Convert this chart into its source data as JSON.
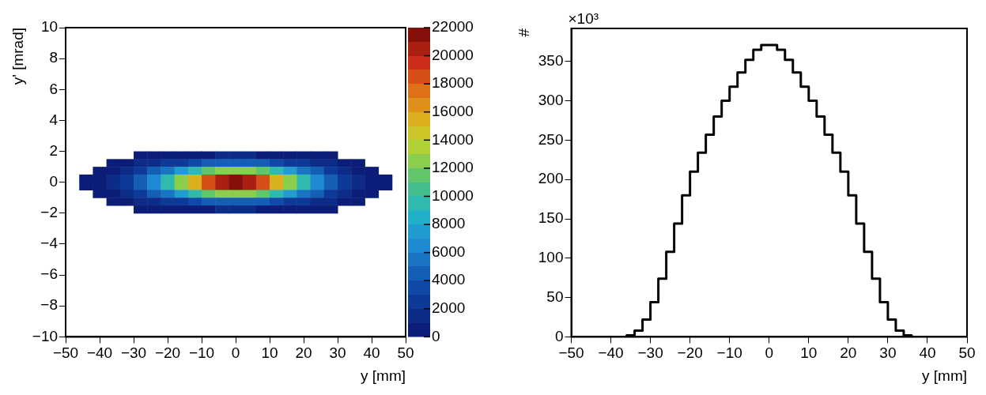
{
  "chart_data": [
    {
      "type": "heatmap",
      "xlabel": "y [mm]",
      "ylabel": "y' [mrad]",
      "x": [
        -44,
        -40,
        -36,
        -32,
        -28,
        -24,
        -20,
        -16,
        -12,
        -8,
        -4,
        0,
        4,
        8,
        12,
        16,
        20,
        24,
        28,
        32,
        36,
        40,
        44
      ],
      "y": [
        1.75,
        1.25,
        0.75,
        0.25,
        -0.25,
        -0.75,
        -1.25,
        -1.75
      ],
      "cells": [
        [
          null,
          null,
          null,
          null,
          200,
          300,
          400,
          600,
          700,
          900,
          1000,
          1000,
          1000,
          900,
          700,
          600,
          400,
          300,
          200,
          null,
          null,
          null,
          null
        ],
        [
          null,
          null,
          300,
          600,
          1000,
          1400,
          2100,
          2700,
          3400,
          4000,
          4400,
          4600,
          4400,
          4000,
          3400,
          2700,
          2100,
          1400,
          1000,
          600,
          300,
          null,
          null
        ],
        [
          null,
          500,
          900,
          1600,
          2600,
          4000,
          5700,
          7600,
          9500,
          11100,
          12300,
          12700,
          12300,
          11100,
          9500,
          7600,
          5700,
          4000,
          2600,
          1600,
          900,
          500,
          null
        ],
        [
          400,
          900,
          1600,
          2700,
          4400,
          6600,
          9500,
          12600,
          15800,
          18600,
          20400,
          21100,
          20400,
          18600,
          15800,
          12600,
          9500,
          6600,
          4400,
          2700,
          1600,
          900,
          400
        ],
        [
          400,
          900,
          1600,
          2700,
          4400,
          6600,
          9500,
          12600,
          15800,
          18600,
          20400,
          21100,
          20400,
          18600,
          15800,
          12600,
          9500,
          6600,
          4400,
          2700,
          1600,
          900,
          400
        ],
        [
          null,
          500,
          900,
          1600,
          2600,
          4000,
          5700,
          7600,
          9500,
          11100,
          12300,
          12700,
          12300,
          11100,
          9500,
          7600,
          5700,
          4000,
          2600,
          1600,
          900,
          500,
          null
        ],
        [
          null,
          null,
          300,
          600,
          1000,
          1400,
          2100,
          2700,
          3400,
          4000,
          4400,
          4600,
          4400,
          4000,
          3400,
          2700,
          2100,
          1400,
          1000,
          600,
          300,
          null,
          null
        ],
        [
          null,
          null,
          null,
          null,
          200,
          300,
          400,
          600,
          700,
          900,
          1000,
          1000,
          1000,
          900,
          700,
          600,
          400,
          300,
          200,
          null,
          null,
          null,
          null
        ]
      ],
      "clim": [
        0,
        22000
      ],
      "cticks": [
        0,
        2000,
        4000,
        6000,
        8000,
        10000,
        12000,
        14000,
        16000,
        18000,
        20000,
        22000
      ],
      "xlim": [
        -50,
        50
      ],
      "xticks": [
        -50,
        -40,
        -30,
        -20,
        -10,
        0,
        10,
        20,
        30,
        40,
        50
      ],
      "ylim": [
        -10,
        10
      ],
      "yticks": [
        -10,
        -8,
        -6,
        -4,
        -2,
        0,
        2,
        4,
        6,
        8,
        10
      ],
      "grid": false
    },
    {
      "type": "histogram",
      "xlabel": "y [mm]",
      "ylabel": "#",
      "annotations": [
        "×10³"
      ],
      "color": "#000000",
      "bins": [
        -50,
        -48,
        -46,
        -44,
        -42,
        -40,
        -38,
        -36,
        -34,
        -32,
        -30,
        -28,
        -26,
        -24,
        -22,
        -20,
        -18,
        -16,
        -14,
        -12,
        -10,
        -8,
        -6,
        -4,
        -2,
        0,
        2,
        4,
        6,
        8,
        10,
        12,
        14,
        16,
        18,
        20,
        22,
        24,
        26,
        28,
        30,
        32,
        34,
        36,
        38,
        40,
        42,
        44,
        46,
        48,
        50
      ],
      "values": [
        0,
        0,
        0,
        0,
        0,
        0,
        0,
        2,
        8,
        22,
        44,
        74,
        108,
        144,
        180,
        210,
        234,
        257,
        280,
        300,
        318,
        336,
        352,
        365,
        371,
        371,
        365,
        352,
        336,
        318,
        300,
        280,
        257,
        234,
        210,
        180,
        144,
        108,
        74,
        44,
        22,
        8,
        2,
        0,
        0,
        0,
        0,
        0,
        0,
        0
      ],
      "xlim": [
        -50,
        50
      ],
      "xticks": [
        -50,
        -40,
        -30,
        -20,
        -10,
        0,
        10,
        20,
        30,
        40,
        50
      ],
      "ylim": [
        0,
        392
      ],
      "yticks": [
        0,
        50,
        100,
        150,
        200,
        250,
        300,
        350
      ],
      "grid": false
    }
  ]
}
